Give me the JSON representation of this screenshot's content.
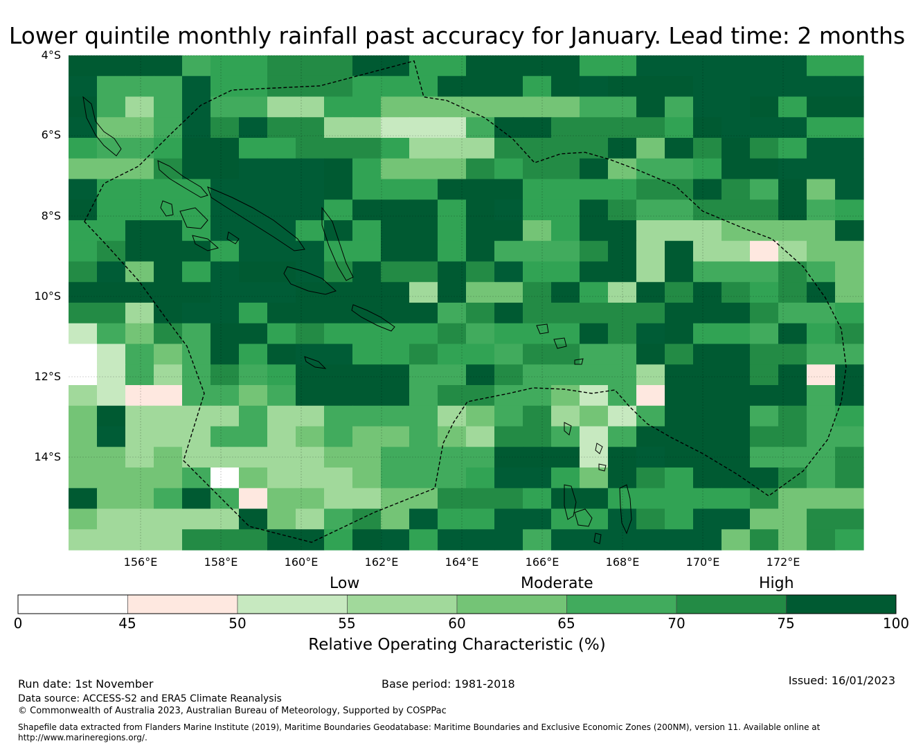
{
  "title": "Lower quintile monthly rainfall past accuracy for January. Lead time: 2 months",
  "map": {
    "lat_labels": [
      "4°S",
      "6°S",
      "8°S",
      "10°S",
      "12°S",
      "14°S"
    ],
    "lon_labels": [
      "156°E",
      "158°E",
      "160°E",
      "162°E",
      "164°E",
      "166°E",
      "168°E",
      "170°E",
      "172°E"
    ],
    "grid_rows": [
      "7777588666778877778899999988",
      "9555988666888777879777999999",
      "7535955338844444445575997877",
      "9445969663322257766668799988",
      "8558778866683336666747676899",
      "4446779997844468667455877999",
      "9888899997888777888866765749",
      "7888899998777879887655666758",
      "8877899987877877487733344447",
      "8677789998877875556737331344",
      "6947897796766769887737555654",
      "7777799977773744678376768674",
      "6637998777777567666667776558",
      "2546577868888658887697885786",
      "0254578799886885665576776655",
      "0253565877775576555537776717",
      "3211554577775665542517777757",
      "4733335335555345634257775658",
      "4933355345445436652577776655",
      "4434333334455557772797775556",
      "4444504333455589984768777656",
      "7445751443344666877888886444",
      "4333337435649889988968994466",
      "3333666778798999599999946468"
    ],
    "palette": [
      "#ffffff",
      "#fee8e0",
      "#c7e9c0",
      "#a1d99b",
      "#74c476",
      "#41ab5d",
      "#238b45",
      "#005a32",
      "#31a354",
      "#005c36"
    ]
  },
  "colorbar": {
    "boundaries": [
      0,
      45,
      50,
      55,
      60,
      65,
      70,
      75,
      100
    ],
    "tick_labels": [
      "0",
      "45",
      "50",
      "55",
      "60",
      "65",
      "70",
      "75",
      "100"
    ],
    "colors": [
      "#ffffff",
      "#fee8e0",
      "#c7e9c0",
      "#a1d99b",
      "#74c476",
      "#41ab5d",
      "#238b45",
      "#005a32"
    ],
    "categories": [
      "Low",
      "Moderate",
      "High"
    ],
    "label": "Relative Operating Characteristic (%)"
  },
  "footer": {
    "run_date": "Run date: 1st November",
    "base_period": "Base period: 1981-2018",
    "issued": "Issued: 16/01/2023",
    "data_source": "Data source: ACCESS-S2 and ERA5 Climate Reanalysis",
    "copyright": "© Commonwealth of Australia 2023, Australian Bureau of Meteorology, Supported by COSPPac",
    "shapefile_note_1": "Shapefile data extracted from Flanders Marine Institute (2019), Maritime Boundaries Geodatabase: Maritime Boundaries and Exclusive Economic Zones (200NM), version 11. Available online at",
    "shapefile_note_2": "http://www.marineregions.org/."
  }
}
